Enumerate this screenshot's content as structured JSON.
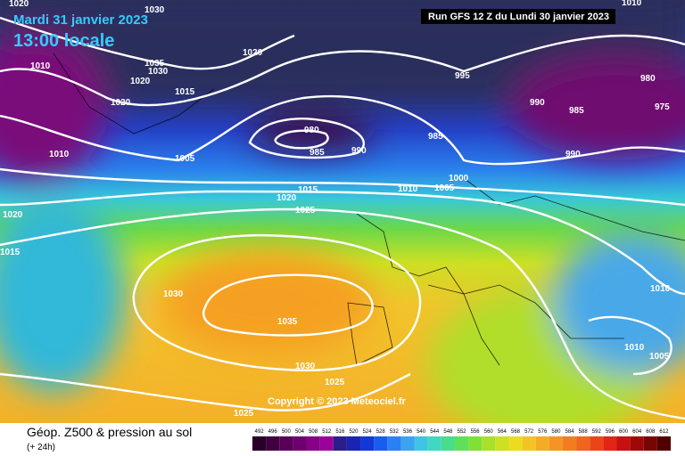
{
  "header": {
    "date": "Mardi 31 janvier 2023",
    "time": "13:00 locale",
    "run": "Run GFS 12 Z du Lundi 30 janvier 2023"
  },
  "isobar_labels": [
    "1020",
    "1030",
    "1010",
    "1010",
    "1035",
    "1030",
    "1020",
    "1015",
    "1020",
    "995",
    "980",
    "990",
    "985",
    "975",
    "1020",
    "980",
    "985",
    "990",
    "985",
    "1010",
    "1005",
    "990",
    "1000",
    "1015",
    "1010",
    "1005",
    "1020",
    "1025",
    "1020",
    "1015",
    "1010",
    "1030",
    "1035",
    "1010",
    "1005",
    "1030",
    "1025",
    "1025"
  ],
  "copyright": "Copyright © 2023 Meteociel.fr",
  "footer": {
    "title": "Géop. Z500 & pression au sol",
    "subtitle": "(+ 24h)"
  },
  "colorbar": {
    "labels": [
      492,
      496,
      500,
      504,
      508,
      512,
      516,
      520,
      524,
      528,
      532,
      536,
      540,
      544,
      548,
      552,
      556,
      560,
      564,
      568,
      572,
      576,
      580,
      584,
      588,
      592,
      596,
      600,
      604,
      608,
      612
    ],
    "colors": [
      "#2a002a",
      "#400040",
      "#580058",
      "#6e006e",
      "#860086",
      "#9c009c",
      "#2a1e8c",
      "#1a24b4",
      "#1438d8",
      "#1a5cf0",
      "#2a80f4",
      "#3aa4f0",
      "#40c4e4",
      "#40d8c0",
      "#48dc8c",
      "#5ee05a",
      "#80e038",
      "#a8e02a",
      "#cce024",
      "#ecdc20",
      "#f4c424",
      "#f4ac24",
      "#f49424",
      "#f47c20",
      "#f0641c",
      "#ec4418",
      "#e42414",
      "#c81010",
      "#a00808",
      "#780404",
      "#500000"
    ]
  }
}
